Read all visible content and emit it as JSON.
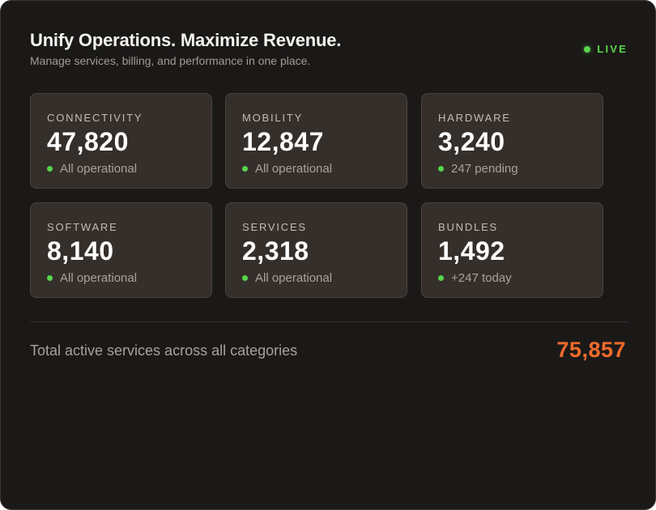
{
  "header": {
    "title": "Unify Operations. Maximize Revenue.",
    "subtitle": "Manage services, billing, and performance in one place.",
    "live_label": "LIVE"
  },
  "cards": [
    {
      "label": "CONNECTIVITY",
      "value": "47,820",
      "status": "All operational"
    },
    {
      "label": "MOBILITY",
      "value": "12,847",
      "status": "All operational"
    },
    {
      "label": "HARDWARE",
      "value": "3,240",
      "status": "247 pending"
    },
    {
      "label": "SOFTWARE",
      "value": "8,140",
      "status": "All operational"
    },
    {
      "label": "SERVICES",
      "value": "2,318",
      "status": "All operational"
    },
    {
      "label": "BUNDLES",
      "value": "1,492",
      "status": "+247 today"
    }
  ],
  "summary": {
    "label": "Total active services across all categories",
    "total": "75,857"
  },
  "colors": {
    "background": "#1b1918",
    "card": "#352f2b",
    "status_green": "#56d64a",
    "accent_orange": "#f06a2c"
  }
}
